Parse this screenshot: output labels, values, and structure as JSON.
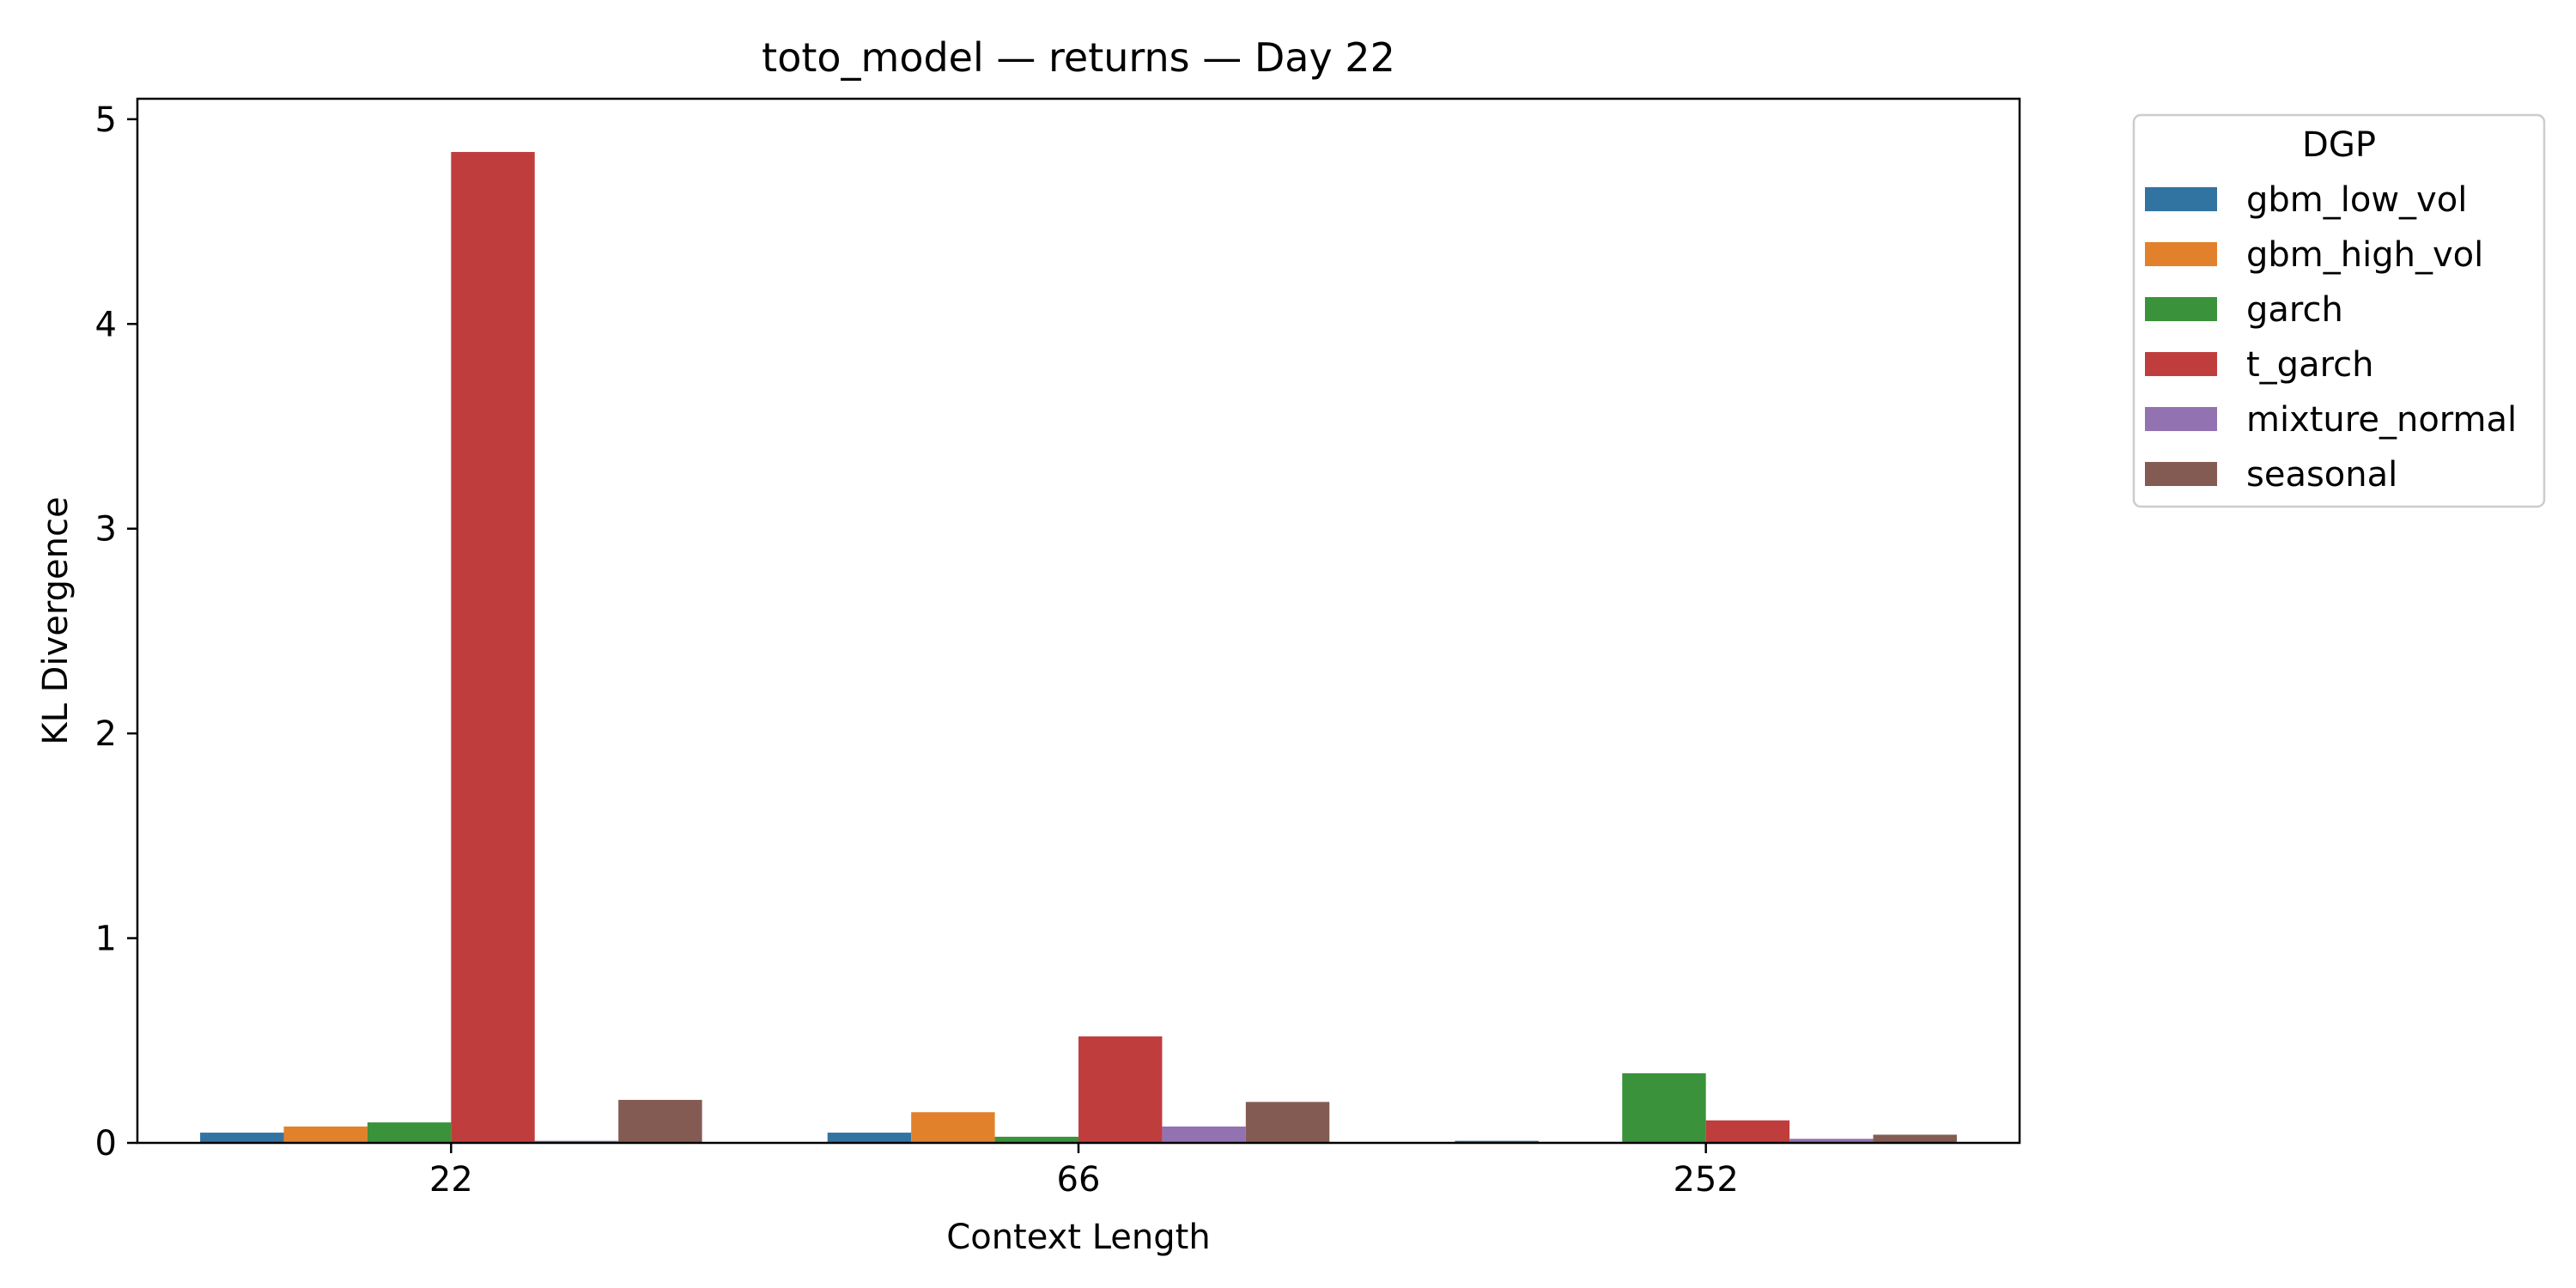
{
  "chart_data": {
    "type": "bar",
    "title": "toto_model — returns — Day 22",
    "xlabel": "Context Length",
    "ylabel": "KL Divergence",
    "categories": [
      "22",
      "66",
      "252"
    ],
    "ylim": [
      0,
      5.1
    ],
    "yticks": [
      0,
      1,
      2,
      3,
      4,
      5
    ],
    "grid": false,
    "legend": {
      "title": "DGP",
      "placement": "outside-upper-right"
    },
    "series": [
      {
        "name": "gbm_low_vol",
        "color": "#3274a1",
        "values": [
          0.05,
          0.05,
          0.01
        ]
      },
      {
        "name": "gbm_high_vol",
        "color": "#e1812c",
        "values": [
          0.08,
          0.15,
          0.005
        ]
      },
      {
        "name": "garch",
        "color": "#3a923a",
        "values": [
          0.1,
          0.03,
          0.34
        ]
      },
      {
        "name": "t_garch",
        "color": "#c03d3e",
        "values": [
          4.84,
          0.52,
          0.11
        ]
      },
      {
        "name": "mixture_normal",
        "color": "#9372b2",
        "values": [
          0.01,
          0.08,
          0.02
        ]
      },
      {
        "name": "seasonal",
        "color": "#845b53",
        "values": [
          0.21,
          0.2,
          0.04
        ]
      }
    ]
  }
}
